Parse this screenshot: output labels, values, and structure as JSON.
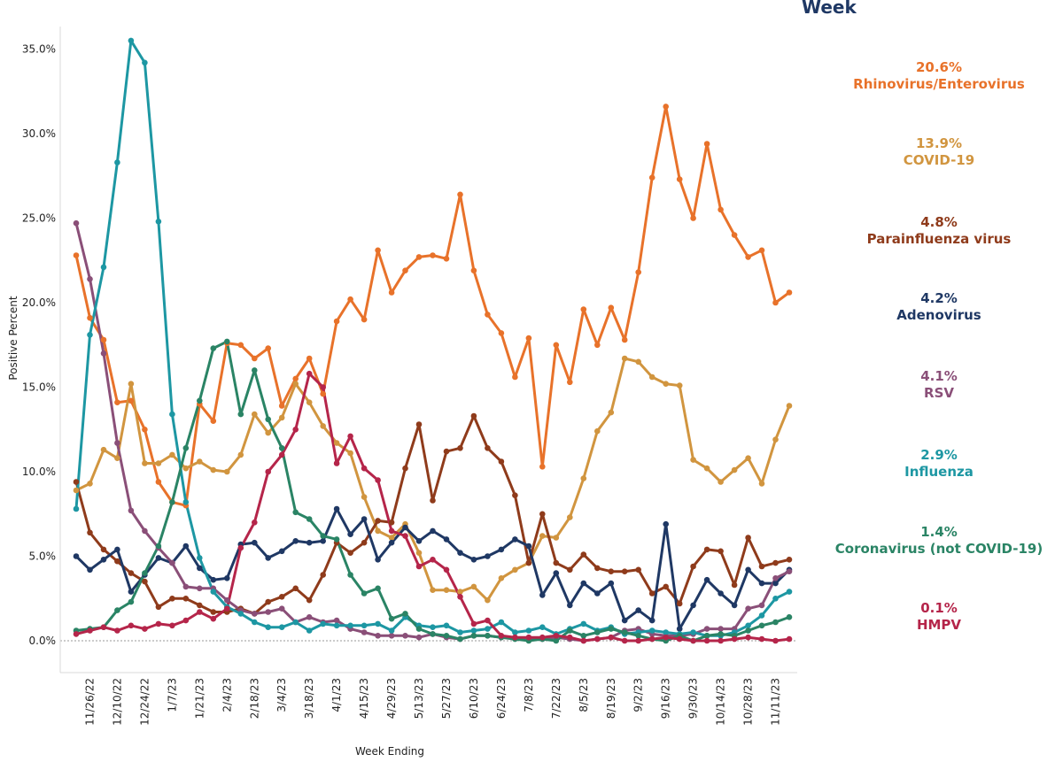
{
  "header": {
    "title": "Week"
  },
  "chart_data": {
    "type": "line",
    "title": "",
    "xlabel": "Week Ending",
    "ylabel": "Positive Percent",
    "ylim": [
      -0.5,
      36.5
    ],
    "yticks": [
      "0.0%",
      "5.0%",
      "10.0%",
      "15.0%",
      "20.0%",
      "25.0%",
      "30.0%",
      "35.0%"
    ],
    "ytick_values": [
      0,
      5,
      10,
      15,
      20,
      25,
      30,
      35
    ],
    "xtick_labels": [
      "11/26/22",
      "12/10/22",
      "12/24/22",
      "1/7/23",
      "1/21/23",
      "2/4/23",
      "2/18/23",
      "3/4/23",
      "3/18/23",
      "4/1/23",
      "4/15/23",
      "4/29/23",
      "5/13/23",
      "5/27/23",
      "6/10/23",
      "6/24/23",
      "7/8/23",
      "7/22/23",
      "8/5/23",
      "8/19/23",
      "9/2/23",
      "9/16/23",
      "9/30/23",
      "10/14/23",
      "10/28/23",
      "11/11/23"
    ],
    "x_week_count": 53,
    "grid": false,
    "legend_position": "right",
    "series": [
      {
        "name": "Rhinovirus/Enterovirus",
        "color": "#e8722a",
        "last_label": "20.6%",
        "values": [
          22.8,
          19.1,
          17.8,
          14.1,
          14.2,
          12.5,
          9.4,
          8.2,
          8.0,
          14.0,
          13.0,
          17.6,
          17.5,
          16.7,
          17.3,
          13.9,
          15.5,
          16.7,
          14.6,
          18.9,
          20.2,
          19.0,
          23.1,
          20.6,
          21.9,
          22.7,
          22.8,
          22.6,
          26.4,
          21.9,
          19.3,
          18.2,
          15.6,
          17.9,
          10.3,
          17.5,
          15.3,
          19.6,
          17.5,
          19.7,
          17.8,
          21.8,
          27.4,
          31.6,
          27.3,
          25.0,
          29.4,
          25.5,
          24.0,
          22.7,
          23.1,
          20.0,
          20.6
        ]
      },
      {
        "name": "COVID-19",
        "color": "#d1953f",
        "last_label": "13.9%",
        "values": [
          8.9,
          9.3,
          11.3,
          10.8,
          15.2,
          10.5,
          10.5,
          11.0,
          10.2,
          10.6,
          10.1,
          10.0,
          11.0,
          13.4,
          12.3,
          13.2,
          15.2,
          14.1,
          12.7,
          11.7,
          11.1,
          8.5,
          6.5,
          6.1,
          6.9,
          5.2,
          3.0,
          3.0,
          2.9,
          3.2,
          2.4,
          3.7,
          4.2,
          4.6,
          6.2,
          6.1,
          7.3,
          9.6,
          12.4,
          13.5,
          16.7,
          16.5,
          15.6,
          15.2,
          15.1,
          10.7,
          10.2,
          9.4,
          10.1,
          10.8,
          9.3,
          11.9,
          13.9
        ]
      },
      {
        "name": "Parainfluenza virus",
        "color": "#8f3b1b",
        "last_label": "4.8%",
        "values": [
          9.4,
          6.4,
          5.4,
          4.7,
          4.0,
          3.5,
          2.0,
          2.5,
          2.5,
          2.1,
          1.7,
          1.7,
          1.9,
          1.6,
          2.3,
          2.6,
          3.1,
          2.4,
          3.9,
          5.8,
          5.2,
          5.8,
          7.1,
          7.0,
          10.2,
          12.8,
          8.3,
          11.2,
          11.4,
          13.3,
          11.4,
          10.6,
          8.6,
          4.6,
          7.5,
          4.6,
          4.2,
          5.1,
          4.3,
          4.1,
          4.1,
          4.2,
          2.8,
          3.2,
          2.2,
          4.4,
          5.4,
          5.3,
          3.3,
          6.1,
          4.4,
          4.6,
          4.8
        ]
      },
      {
        "name": "Adenovirus",
        "color": "#1f3864",
        "last_label": "4.2%",
        "values": [
          5.0,
          4.2,
          4.8,
          5.4,
          2.9,
          3.9,
          4.9,
          4.6,
          5.6,
          4.3,
          3.6,
          3.7,
          5.7,
          5.8,
          4.9,
          5.3,
          5.9,
          5.8,
          5.9,
          7.8,
          6.3,
          7.2,
          4.8,
          5.8,
          6.7,
          5.9,
          6.5,
          6.0,
          5.2,
          4.8,
          5.0,
          5.4,
          6.0,
          5.6,
          2.7,
          4.0,
          2.1,
          3.4,
          2.8,
          3.4,
          1.2,
          1.8,
          1.2,
          6.9,
          0.7,
          2.1,
          3.6,
          2.8,
          2.1,
          4.2,
          3.4,
          3.4,
          4.2
        ]
      },
      {
        "name": "RSV",
        "color": "#8a4f78",
        "last_label": "4.1%",
        "values": [
          24.7,
          21.4,
          17.0,
          11.7,
          7.7,
          6.5,
          5.5,
          4.6,
          3.2,
          3.1,
          3.1,
          2.4,
          1.8,
          1.6,
          1.7,
          1.9,
          1.1,
          1.4,
          1.1,
          1.2,
          0.7,
          0.5,
          0.3,
          0.3,
          0.3,
          0.2,
          0.4,
          0.2,
          0.1,
          0.3,
          0.3,
          0.2,
          0.2,
          0.1,
          0.1,
          0.2,
          0.1,
          0.0,
          0.1,
          0.2,
          0.6,
          0.7,
          0.4,
          0.3,
          0.3,
          0.4,
          0.7,
          0.7,
          0.7,
          1.9,
          2.1,
          3.7,
          4.1
        ]
      },
      {
        "name": "Influenza",
        "color": "#1d97a3",
        "last_label": "2.9%",
        "values": [
          7.8,
          18.1,
          22.1,
          28.3,
          35.5,
          34.2,
          24.8,
          13.4,
          8.2,
          4.9,
          2.9,
          2.0,
          1.6,
          1.1,
          0.8,
          0.8,
          1.1,
          0.6,
          1.0,
          0.9,
          0.9,
          0.9,
          1.0,
          0.6,
          1.4,
          0.9,
          0.8,
          0.9,
          0.5,
          0.6,
          0.7,
          1.1,
          0.5,
          0.6,
          0.8,
          0.4,
          0.7,
          1.0,
          0.6,
          0.8,
          0.4,
          0.5,
          0.6,
          0.5,
          0.4,
          0.5,
          0.3,
          0.3,
          0.5,
          0.9,
          1.5,
          2.5,
          2.9
        ]
      },
      {
        "name": "Coronavirus (not COVID-19)",
        "color": "#2a8465",
        "last_label": "1.4%",
        "values": [
          0.6,
          0.7,
          0.8,
          1.8,
          2.3,
          4.0,
          5.6,
          8.2,
          11.4,
          14.2,
          17.3,
          17.7,
          13.4,
          16.0,
          13.1,
          11.4,
          7.6,
          7.2,
          6.2,
          6.0,
          3.9,
          2.8,
          3.1,
          1.3,
          1.6,
          0.7,
          0.4,
          0.3,
          0.1,
          0.3,
          0.3,
          0.2,
          0.1,
          0.0,
          0.1,
          0.0,
          0.6,
          0.3,
          0.5,
          0.7,
          0.5,
          0.3,
          0.1,
          0.0,
          0.3,
          0.0,
          0.3,
          0.4,
          0.3,
          0.6,
          0.9,
          1.1,
          1.4
        ]
      },
      {
        "name": "HMPV",
        "color": "#b5254a",
        "last_label": "0.1%",
        "values": [
          0.4,
          0.6,
          0.8,
          0.6,
          0.9,
          0.7,
          1.0,
          0.9,
          1.2,
          1.7,
          1.3,
          1.9,
          5.5,
          7.0,
          10.0,
          11.0,
          12.5,
          15.8,
          15.0,
          10.5,
          12.1,
          10.2,
          9.5,
          6.5,
          6.2,
          4.4,
          4.8,
          4.2,
          2.6,
          1.0,
          1.2,
          0.3,
          0.2,
          0.2,
          0.2,
          0.3,
          0.2,
          0.0,
          0.1,
          0.2,
          0.0,
          0.0,
          0.1,
          0.2,
          0.1,
          0.0,
          0.0,
          0.0,
          0.1,
          0.2,
          0.1,
          0.0,
          0.1
        ]
      }
    ]
  }
}
